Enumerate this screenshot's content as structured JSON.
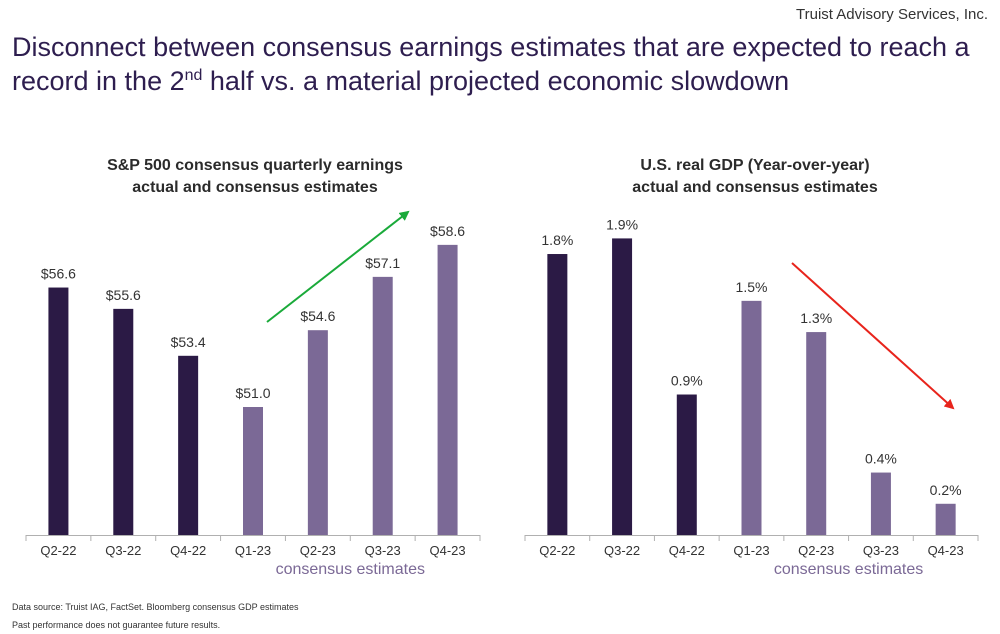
{
  "header": {
    "brand": "Truist Advisory Services, Inc.",
    "headline_part1": "Disconnect between consensus earnings estimates that are expected to reach a record in the 2",
    "headline_sup": "nd",
    "headline_part2": " half vs. a material projected economic slowdown"
  },
  "colors": {
    "actual": "#2b1a45",
    "estimate": "#7b6996",
    "up_arrow": "#1aaa3a",
    "down_arrow": "#e8241c"
  },
  "chart_data": [
    {
      "type": "bar",
      "title": "S&P 500 consensus quarterly earnings",
      "subtitle": "actual and consensus estimates",
      "categories": [
        "Q2-22",
        "Q3-22",
        "Q4-22",
        "Q1-23",
        "Q2-23",
        "Q3-23",
        "Q4-23"
      ],
      "values": [
        56.6,
        55.6,
        53.4,
        51.0,
        54.6,
        57.1,
        58.6
      ],
      "value_labels": [
        "$56.6",
        "$55.6",
        "$53.4",
        "$51.0",
        "$54.6",
        "$57.1",
        "$58.6"
      ],
      "bar_kind": [
        "actual",
        "actual",
        "actual",
        "estimate",
        "estimate",
        "estimate",
        "estimate"
      ],
      "estimate_caption": "consensus estimates",
      "ylim": [
        45,
        60
      ],
      "trend": "up",
      "grid": false,
      "legend": "none"
    },
    {
      "type": "bar",
      "title": "U.S. real GDP  (Year-over-year)",
      "subtitle": "actual and consensus estimates",
      "categories": [
        "Q2-22",
        "Q3-22",
        "Q4-22",
        "Q1-23",
        "Q2-23",
        "Q3-23",
        "Q4-23"
      ],
      "values": [
        1.8,
        1.9,
        0.9,
        1.5,
        1.3,
        0.4,
        0.2
      ],
      "value_labels": [
        "1.8%",
        "1.9%",
        "0.9%",
        "1.5%",
        "1.3%",
        "0.4%",
        "0.2%"
      ],
      "bar_kind": [
        "actual",
        "actual",
        "actual",
        "estimate",
        "estimate",
        "estimate",
        "estimate"
      ],
      "estimate_caption": "consensus estimates",
      "ylim": [
        0,
        2.05
      ],
      "trend": "down",
      "grid": false,
      "legend": "none"
    }
  ],
  "footnotes": {
    "source": "Data source: Truist IAG, FactSet. Bloomberg consensus GDP estimates",
    "disclaimer": "Past performance does not guarantee future results."
  }
}
